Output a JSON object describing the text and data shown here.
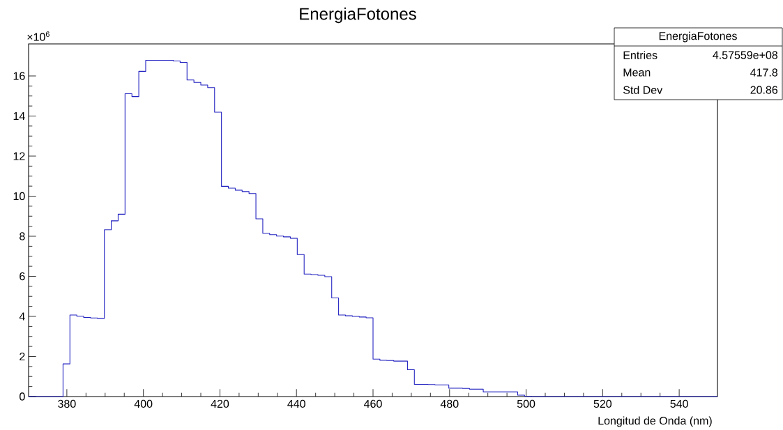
{
  "chart_data": {
    "type": "histogram",
    "title": "EnergiaFotones",
    "xlabel": "Longitud de Onda (nm)",
    "bins": [
      370,
      371.8,
      373.6,
      375.4,
      377.2,
      379,
      380.8,
      382.6,
      384.4,
      386.2,
      388,
      389.8,
      391.6,
      393.4,
      395.2,
      397,
      398.8,
      400.6,
      402.4,
      404.2,
      406,
      407.8,
      409.6,
      411.4,
      413.2,
      415,
      416.8,
      418.6,
      420.4,
      422.2,
      424,
      425.8,
      427.6,
      429.4,
      431.2,
      433,
      434.8,
      436.6,
      438.4,
      440.2,
      442,
      443.8,
      445.6,
      447.4,
      449.2,
      451,
      452.8,
      454.6,
      456.4,
      458.2,
      460,
      461.8,
      463.6,
      465.4,
      467.2,
      469,
      470.8,
      472.6,
      474.4,
      476.2,
      478,
      479.8,
      481.6,
      483.4,
      485.2,
      487,
      488.8,
      490.6,
      492.4,
      494.2,
      496,
      497.8,
      499.6,
      501.4,
      503.2,
      505,
      506.8,
      508.6,
      510.4,
      512.2,
      514,
      515.8,
      517.6,
      519.4,
      521.2,
      523,
      524.8,
      526.6,
      528.4,
      530.2,
      532,
      533.8,
      535.6,
      537.4,
      539.2,
      541,
      542.8,
      544.6,
      546.4,
      548.2,
      550
    ],
    "values": [
      0,
      0,
      0,
      0,
      0,
      1.63,
      4.07,
      4.01,
      3.95,
      3.92,
      3.9,
      8.32,
      8.77,
      9.1,
      15.11,
      14.97,
      16.23,
      16.78,
      16.78,
      16.78,
      16.78,
      16.75,
      16.68,
      15.8,
      15.68,
      15.55,
      15.42,
      14.19,
      10.49,
      10.4,
      10.3,
      10.23,
      10.13,
      8.87,
      8.15,
      8.08,
      8.01,
      7.97,
      7.9,
      7.09,
      6.11,
      6.09,
      6.05,
      5.98,
      4.92,
      4.07,
      4.03,
      4.0,
      3.97,
      3.93,
      1.87,
      1.81,
      1.8,
      1.77,
      1.77,
      1.34,
      0.61,
      0.61,
      0.6,
      0.58,
      0.58,
      0.42,
      0.42,
      0.41,
      0.37,
      0.37,
      0.23,
      0.23,
      0.23,
      0.23,
      0.23,
      0.07,
      0.02,
      0,
      0,
      0,
      0,
      0,
      0,
      0,
      0,
      0,
      0,
      0,
      0,
      0,
      0,
      0,
      0,
      0,
      0,
      0,
      0,
      0,
      0,
      0,
      0,
      0,
      0,
      0
    ],
    "color": "#2020c0",
    "xlim": [
      370,
      550
    ],
    "xticks": [
      380,
      400,
      420,
      440,
      460,
      480,
      500,
      520,
      540
    ],
    "ylim": [
      0,
      17.6
    ],
    "yticks": [
      0,
      2,
      4,
      6,
      8,
      10,
      12,
      14,
      16
    ],
    "grid": false,
    "annotations": [
      "×10$^{6}$",
      "EnergiaFotones",
      "Entries",
      "4.57559e+08",
      "Mean",
      "417.8",
      "Std Dev",
      "20.86"
    ]
  }
}
